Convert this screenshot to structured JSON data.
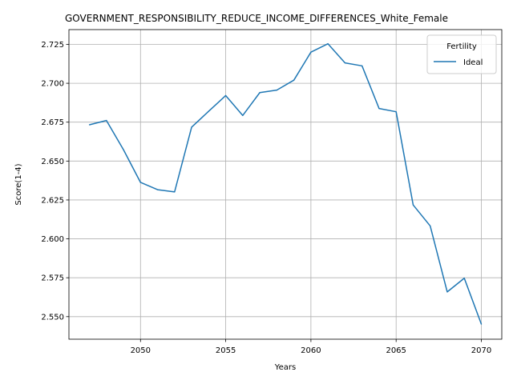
{
  "chart_data": {
    "type": "line",
    "title": "GOVERNMENT_RESPONSIBILITY_REDUCE_INCOME_DIFFERENCES_White_Female",
    "xlabel": "Years",
    "ylabel": "Score(1-4)",
    "xlim": [
      2045.8,
      2071.2
    ],
    "ylim": [
      2.5355,
      2.7345
    ],
    "x_ticks": [
      2050,
      2055,
      2060,
      2065,
      2070
    ],
    "y_ticks": [
      2.55,
      2.575,
      2.6,
      2.625,
      2.65,
      2.675,
      2.7,
      2.725
    ],
    "x_tick_labels": [
      "2050",
      "2055",
      "2060",
      "2065",
      "2070"
    ],
    "y_tick_labels": [
      "2.550",
      "2.575",
      "2.600",
      "2.625",
      "2.650",
      "2.675",
      "2.700",
      "2.725"
    ],
    "grid": true,
    "legend": {
      "title": "Fertility",
      "position": "top-right"
    },
    "series": [
      {
        "name": "Ideal",
        "color": "#1f77b4",
        "points": [
          [
            2047,
            2.6733
          ],
          [
            2048,
            2.6761
          ],
          [
            2049,
            2.6573
          ],
          [
            2050,
            2.6363
          ],
          [
            2051,
            2.6316
          ],
          [
            2052,
            2.6302
          ],
          [
            2053,
            2.6718
          ],
          [
            2054,
            2.682
          ],
          [
            2055,
            2.6921
          ],
          [
            2056,
            2.6793
          ],
          [
            2057,
            2.694
          ],
          [
            2058,
            2.6956
          ],
          [
            2059,
            2.702
          ],
          [
            2060,
            2.72
          ],
          [
            2061,
            2.7254
          ],
          [
            2062,
            2.7131
          ],
          [
            2063,
            2.7112
          ],
          [
            2064,
            2.6838
          ],
          [
            2065,
            2.6817
          ],
          [
            2066,
            2.6218
          ],
          [
            2067,
            2.6083
          ],
          [
            2068,
            2.5659
          ],
          [
            2069,
            2.5747
          ],
          [
            2070,
            2.5452
          ]
        ]
      }
    ]
  }
}
